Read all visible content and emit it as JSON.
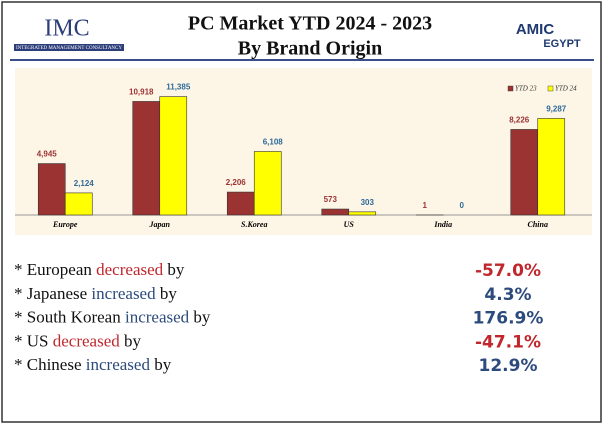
{
  "header": {
    "left_logo": "IMC",
    "left_logo_sub": "INTEGRATED MANAGEMENT CONSULTANCY",
    "right_logo_top": "AMIC",
    "right_logo_bottom": "EGYPT"
  },
  "chart_data": {
    "type": "bar",
    "title": [
      "PC Market YTD 2024 - 2023",
      "By Brand Origin"
    ],
    "categories": [
      "Europe",
      "Japan",
      "S.Korea",
      "US",
      "India",
      "China"
    ],
    "series": [
      {
        "name": "YTD 23",
        "color": "#9b3333",
        "values": [
          4945,
          10918,
          2206,
          573,
          1,
          8226
        ],
        "value_labels": [
          "4,945",
          "10,918",
          "2,206",
          "573",
          "1",
          "8,226"
        ]
      },
      {
        "name": "YTD 24",
        "color": "#ffff00",
        "values": [
          2124,
          11385,
          6108,
          303,
          0,
          9287
        ],
        "value_labels": [
          "2,124",
          "11,385",
          "6,108",
          "303",
          "0",
          "9,287"
        ]
      }
    ],
    "ylim": [
      0,
      12500
    ],
    "legend": "top-right"
  },
  "bullets": [
    {
      "prefix": "* European ",
      "keyword": "decreased",
      "suffix": " by",
      "value": "-57.0%",
      "trend": "down"
    },
    {
      "prefix": "* Japanese ",
      "keyword": "increased",
      "suffix": " by",
      "value": "4.3%",
      "trend": "up"
    },
    {
      "prefix": "* South Korean ",
      "keyword": "increased",
      "suffix": " by",
      "value": "176.9%",
      "trend": "up"
    },
    {
      "prefix": "* US ",
      "keyword": "decreased",
      "suffix": " by",
      "value": "-47.1%",
      "trend": "down"
    },
    {
      "prefix": "* Chinese ",
      "keyword": "increased",
      "suffix": " by",
      "value": "12.9%",
      "trend": "up"
    }
  ]
}
